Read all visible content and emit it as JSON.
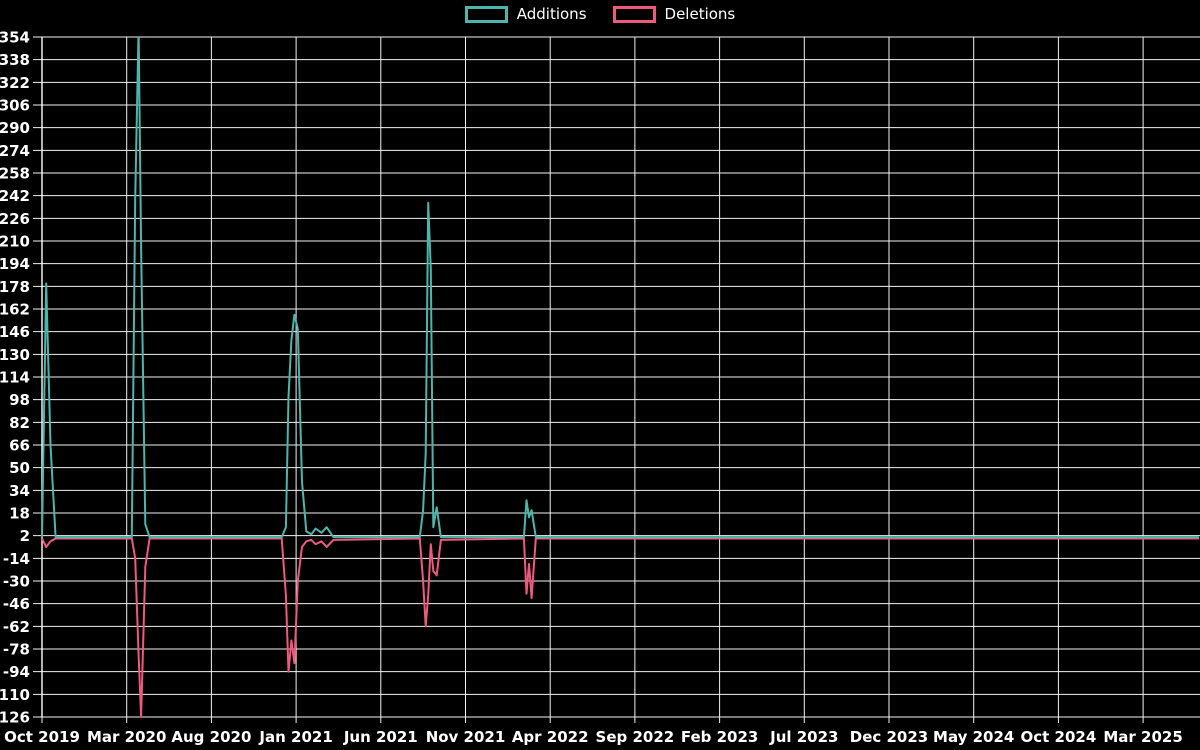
{
  "chart_data": {
    "type": "line",
    "title": "",
    "legend": {
      "position": "top",
      "items": [
        "Additions",
        "Deletions"
      ]
    },
    "series": [
      {
        "name": "Additions",
        "color": "#4db6ac"
      },
      {
        "name": "Deletions",
        "color": "#ef597f"
      }
    ],
    "x_axis": {
      "tick_labels": [
        "Oct 2019",
        "Mar 2020",
        "Aug 2020",
        "Jan 2021",
        "Jun 2021",
        "Nov 2021",
        "Apr 2022",
        "Sep 2022",
        "Feb 2023",
        "Jul 2023",
        "Dec 2023",
        "May 2024",
        "Oct 2024",
        "Mar 2025"
      ],
      "tick_step_months": 5,
      "range_end_month_offset": 68.3
    },
    "y_axis": {
      "ticks": [
        354,
        338,
        322,
        306,
        290,
        274,
        258,
        242,
        226,
        210,
        194,
        178,
        162,
        146,
        130,
        114,
        98,
        82,
        66,
        50,
        34,
        18,
        2,
        -14,
        -30,
        -46,
        -62,
        -78,
        -94,
        -110,
        -126
      ],
      "min": -126,
      "max": 354,
      "step": 16
    },
    "grid": true,
    "points": [
      {
        "month": 0.0,
        "additions": 1,
        "deletions": 0
      },
      {
        "month": 0.25,
        "additions": 180,
        "deletions": -6
      },
      {
        "month": 0.5,
        "additions": 66,
        "deletions": -2
      },
      {
        "month": 0.8,
        "additions": 1,
        "deletions": 0
      },
      {
        "month": 5.3,
        "additions": 1,
        "deletions": 0
      },
      {
        "month": 5.5,
        "additions": 240,
        "deletions": -14
      },
      {
        "month": 5.7,
        "additions": 360,
        "deletions": -82
      },
      {
        "month": 5.85,
        "additions": 206,
        "deletions": -126
      },
      {
        "month": 6.1,
        "additions": 10,
        "deletions": -20
      },
      {
        "month": 6.35,
        "additions": 1,
        "deletions": 0
      },
      {
        "month": 14.15,
        "additions": 1,
        "deletions": 0
      },
      {
        "month": 14.4,
        "additions": 8,
        "deletions": -40
      },
      {
        "month": 14.55,
        "additions": 100,
        "deletions": -94
      },
      {
        "month": 14.72,
        "additions": 140,
        "deletions": -72
      },
      {
        "month": 14.9,
        "additions": 158,
        "deletions": -88
      },
      {
        "month": 15.1,
        "additions": 148,
        "deletions": -30
      },
      {
        "month": 15.35,
        "additions": 40,
        "deletions": -6
      },
      {
        "month": 15.6,
        "additions": 5,
        "deletions": -2
      },
      {
        "month": 15.9,
        "additions": 3,
        "deletions": -1
      },
      {
        "month": 16.15,
        "additions": 7,
        "deletions": -4
      },
      {
        "month": 16.5,
        "additions": 4,
        "deletions": -2
      },
      {
        "month": 16.8,
        "additions": 8,
        "deletions": -6
      },
      {
        "month": 17.2,
        "additions": 1,
        "deletions": -1
      },
      {
        "month": 22.3,
        "additions": 1,
        "deletions": 0
      },
      {
        "month": 22.5,
        "additions": 20,
        "deletions": -30
      },
      {
        "month": 22.65,
        "additions": 60,
        "deletions": -62
      },
      {
        "month": 22.8,
        "additions": 237,
        "deletions": -40
      },
      {
        "month": 22.95,
        "additions": 190,
        "deletions": -4
      },
      {
        "month": 23.1,
        "additions": 8,
        "deletions": -23
      },
      {
        "month": 23.3,
        "additions": 22,
        "deletions": -26
      },
      {
        "month": 23.55,
        "additions": 1,
        "deletions": -1
      },
      {
        "month": 28.45,
        "additions": 1,
        "deletions": 0
      },
      {
        "month": 28.6,
        "additions": 27,
        "deletions": -39
      },
      {
        "month": 28.75,
        "additions": 15,
        "deletions": -18
      },
      {
        "month": 28.9,
        "additions": 20,
        "deletions": -42
      },
      {
        "month": 29.15,
        "additions": 1,
        "deletions": 0
      },
      {
        "month": 68.3,
        "additions": 1,
        "deletions": 0
      }
    ]
  },
  "colors": {
    "background": "#000000",
    "grid": "#f2f2f2",
    "text": "#ffffff"
  }
}
